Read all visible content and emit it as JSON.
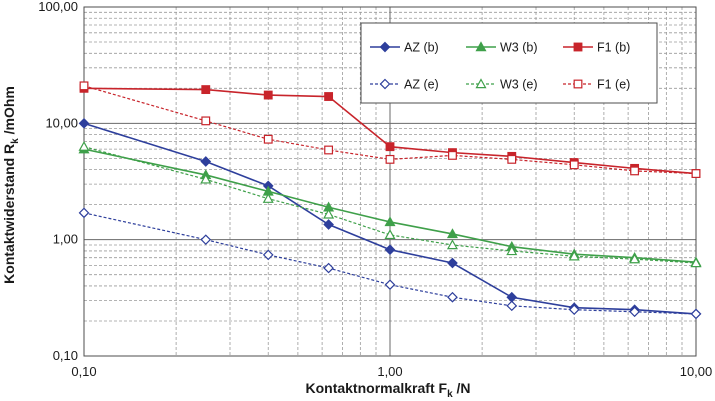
{
  "chart_data": {
    "type": "line",
    "xlabel": "Kontaktnormalkraft F",
    "xlabel_sub": "k",
    "xlabel_unit": " /N",
    "ylabel": "Kontaktwiderstand R",
    "ylabel_sub": "k",
    "ylabel_unit": " /mOhm",
    "x_scale": "log",
    "y_scale": "log",
    "xlim": [
      0.1,
      10
    ],
    "ylim": [
      0.1,
      100
    ],
    "x_tick_labels": [
      "0,10",
      "1,00",
      "10,00"
    ],
    "y_tick_labels": [
      "0,10",
      "1,00",
      "10,00",
      "100,00"
    ],
    "x_tick_values": [
      0.1,
      1,
      10
    ],
    "y_tick_values": [
      0.1,
      1,
      10,
      100
    ],
    "grid": true,
    "legend_position": "top-right",
    "x": [
      0.1,
      0.25,
      0.4,
      0.63,
      1.0,
      1.6,
      2.5,
      4.0,
      6.3,
      10.0
    ],
    "series": [
      {
        "name": "AZ (b)",
        "color": "#2e3f9c",
        "marker": "diamond",
        "filled": true,
        "dashed": false,
        "values": [
          10.0,
          4.7,
          2.9,
          1.35,
          0.82,
          0.63,
          0.32,
          0.26,
          0.25,
          0.23
        ]
      },
      {
        "name": "W3 (b)",
        "color": "#3fa04a",
        "marker": "triangle",
        "filled": true,
        "dashed": false,
        "values": [
          6.0,
          3.6,
          2.6,
          1.9,
          1.42,
          1.12,
          0.87,
          0.75,
          0.7,
          0.64
        ]
      },
      {
        "name": "F1 (b)",
        "color": "#c8242b",
        "marker": "square",
        "filled": true,
        "dashed": false,
        "values": [
          20.0,
          19.5,
          17.5,
          17.0,
          6.3,
          5.6,
          5.2,
          4.6,
          4.1,
          3.7
        ]
      },
      {
        "name": "AZ (e)",
        "color": "#2e3f9c",
        "marker": "diamond",
        "filled": false,
        "dashed": true,
        "values": [
          1.7,
          1.0,
          0.74,
          0.57,
          0.41,
          0.32,
          0.27,
          0.25,
          0.24,
          0.23
        ]
      },
      {
        "name": "W3 (e)",
        "color": "#3fa04a",
        "marker": "triangle",
        "filled": false,
        "dashed": true,
        "values": [
          6.3,
          3.3,
          2.25,
          1.65,
          1.1,
          0.9,
          0.8,
          0.72,
          0.68,
          0.63
        ]
      },
      {
        "name": "F1 (e)",
        "color": "#c8242b",
        "marker": "square",
        "filled": false,
        "dashed": true,
        "values": [
          21.0,
          10.5,
          7.3,
          5.9,
          4.9,
          5.3,
          4.9,
          4.4,
          3.9,
          3.7
        ]
      }
    ]
  }
}
